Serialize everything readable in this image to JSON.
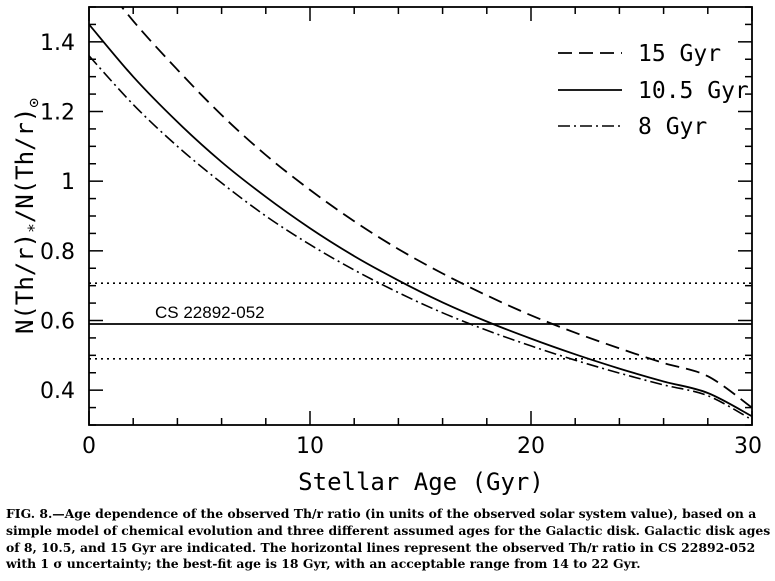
{
  "chart_data": {
    "type": "line",
    "xlabel": "Stellar Age (Gyr)",
    "ylabel_parts": {
      "a": "N(Th/r)",
      "b": "*",
      "c": "/N(Th/r)",
      "d": "⊙"
    },
    "xlim": [
      0,
      30
    ],
    "ylim": [
      0.3,
      1.5
    ],
    "x_ticks": [
      0,
      10,
      20,
      30
    ],
    "y_ticks": [
      0.4,
      0.6,
      0.8,
      1,
      1.2,
      1.4
    ],
    "x_tick_labels": [
      "0",
      "10",
      "20",
      "30"
    ],
    "y_tick_labels": [
      "0.4",
      "0.6",
      "0.8",
      "1",
      "1.2",
      "1.4"
    ],
    "grid": false,
    "legend_position": "top-right",
    "series": [
      {
        "name": "15 Gyr",
        "dash": "dashed",
        "x": [
          0,
          2,
          4,
          6,
          8,
          10,
          12,
          14,
          16,
          18,
          20,
          22,
          24,
          26,
          28,
          30
        ],
        "y": [
          1.62,
          1.46,
          1.32,
          1.19,
          1.075,
          0.975,
          0.885,
          0.805,
          0.735,
          0.672,
          0.615,
          0.565,
          0.52,
          0.478,
          0.44,
          0.35
        ]
      },
      {
        "name": "10.5 Gyr",
        "dash": "solid",
        "x": [
          0,
          2,
          4,
          6,
          8,
          10,
          12,
          14,
          16,
          18,
          20,
          22,
          24,
          26,
          28,
          30
        ],
        "y": [
          1.45,
          1.3,
          1.17,
          1.055,
          0.955,
          0.865,
          0.785,
          0.715,
          0.652,
          0.597,
          0.548,
          0.503,
          0.462,
          0.425,
          0.392,
          0.325
        ]
      },
      {
        "name": "8 Gyr",
        "dash": "dashdot",
        "x": [
          0,
          2,
          4,
          6,
          8,
          10,
          12,
          14,
          16,
          18,
          20,
          22,
          24,
          26,
          28,
          30
        ],
        "y": [
          1.36,
          1.22,
          1.1,
          0.995,
          0.9,
          0.818,
          0.745,
          0.68,
          0.622,
          0.572,
          0.527,
          0.486,
          0.449,
          0.415,
          0.384,
          0.315
        ]
      }
    ],
    "hlines": [
      {
        "y": 0.707,
        "style": "dotted"
      },
      {
        "y": 0.59,
        "style": "solid"
      },
      {
        "y": 0.49,
        "style": "dotted"
      }
    ],
    "annotation": "CS 22892-052"
  },
  "caption": "FIG. 8.—Age dependence of the observed Th/r ratio (in units of the observed solar system value), based on a simple model of chemical evolution and three different assumed ages for the Galactic disk. Galactic disk ages of 8, 10.5, and 15 Gyr are indicated. The horizontal lines represent the observed Th/r ratio in CS 22892-052 with 1 σ uncertainty; the best-fit age is 18 Gyr, with an acceptable range from 14 to 22 Gyr."
}
